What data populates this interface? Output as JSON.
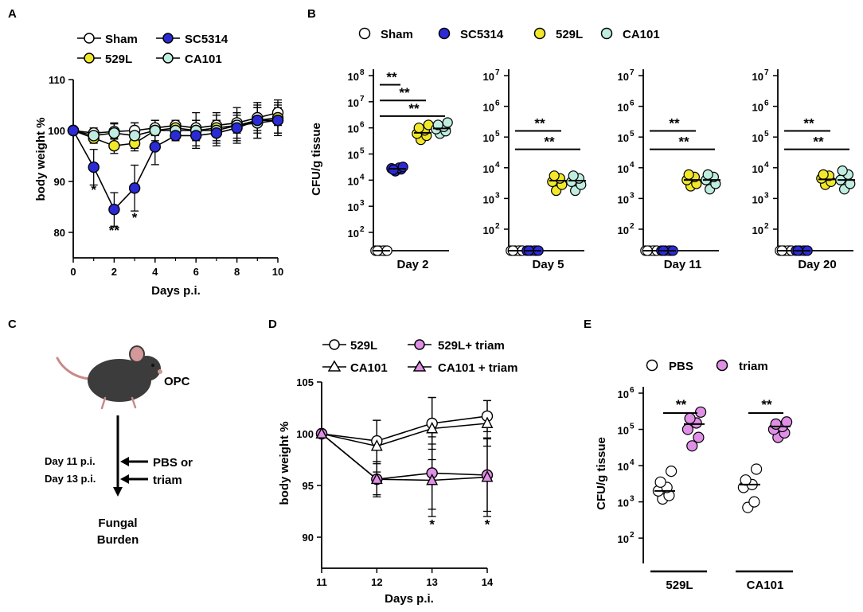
{
  "panels": {
    "A": "A",
    "B": "B",
    "C": "C",
    "D": "D",
    "E": "E"
  },
  "colors": {
    "sham": "#ffffff",
    "sc5314": "#2b2bd6",
    "l529": "#f2e82a",
    "ca101": "#bfeee0",
    "triam": "#e08fe6",
    "stroke": "#000000"
  },
  "chart_data": [
    {
      "id": "A",
      "type": "line",
      "xlabel": "Days p.i.",
      "ylabel": "body weight %",
      "xlim": [
        0,
        10
      ],
      "ylim": [
        75,
        110
      ],
      "x_ticks": [
        "0",
        "2",
        "4",
        "6",
        "8",
        "10"
      ],
      "y_ticks": [
        "80",
        "90",
        "100",
        "110"
      ],
      "x_tick_values": [
        0,
        2,
        4,
        6,
        8,
        10
      ],
      "y_tick_values": [
        80,
        90,
        100,
        110
      ],
      "legend": [
        "Sham",
        "SC5314",
        "529L",
        "CA101"
      ],
      "x": [
        0,
        1,
        2,
        3,
        4,
        5,
        6,
        7,
        8,
        9,
        10
      ],
      "series": [
        {
          "name": "Sham",
          "color_key": "sham",
          "values": [
            100,
            99.5,
            99.8,
            100,
            100.5,
            101,
            100.5,
            101,
            101.5,
            102.5,
            103.5
          ],
          "err": [
            0,
            1,
            1.5,
            1.5,
            1.5,
            1,
            1.5,
            2,
            2,
            2.5,
            2.5
          ]
        },
        {
          "name": "529L",
          "color_key": "l529",
          "values": [
            100,
            98.5,
            97,
            97.5,
            100,
            100.5,
            100,
            100.5,
            101,
            102,
            102.5
          ],
          "err": [
            0,
            1,
            1.5,
            1.5,
            1,
            1,
            3.5,
            3,
            3.5,
            3.5,
            3
          ]
        },
        {
          "name": "CA101",
          "color_key": "ca101",
          "values": [
            100,
            99,
            99.5,
            99,
            100,
            100,
            100,
            100,
            101,
            101.5,
            102
          ],
          "err": [
            0,
            1,
            2,
            2.5,
            2,
            1,
            2,
            2,
            2.5,
            3,
            3
          ]
        },
        {
          "name": "SC5314",
          "color_key": "sc5314",
          "values": [
            100,
            92.8,
            84.5,
            88.7,
            96.8,
            99,
            99,
            99.5,
            100.5,
            102,
            102
          ],
          "err": [
            0,
            3.5,
            3.3,
            4.5,
            3.5,
            1,
            2,
            2.5,
            2.5,
            2.5,
            2.5
          ]
        }
      ],
      "annotations": [
        {
          "text": "*",
          "x": 1,
          "y": 87.5
        },
        {
          "text": "**",
          "x": 2,
          "y": 79.5
        },
        {
          "text": "*",
          "x": 3,
          "y": 82
        }
      ]
    },
    {
      "id": "B",
      "type": "scatter",
      "ylabel": "CFU/g tissue",
      "scale": "log",
      "legend": [
        "Sham",
        "SC5314",
        "529L",
        "CA101"
      ],
      "subplots": [
        {
          "category": "Day 2",
          "ylim_exp": [
            1.3,
            8
          ],
          "top_tick": 8,
          "y_ticks": [
            "10",
            "10",
            "10",
            "10",
            "10",
            "10",
            "10"
          ],
          "y_tick_exps": [
            "2",
            "3",
            "4",
            "5",
            "6",
            "7",
            "8"
          ],
          "groups": [
            {
              "name": "Sham",
              "values": [
                20,
                20,
                20,
                20,
                20,
                20
              ]
            },
            {
              "name": "SC5314",
              "values": [
                22000,
                26000,
                28000,
                30000,
                25000,
                32000
              ]
            },
            {
              "name": "529L",
              "values": [
                350000,
                500000,
                600000,
                800000,
                1000000,
                1300000
              ]
            },
            {
              "name": "CA101",
              "values": [
                600000,
                750000,
                900000,
                1100000,
                1300000,
                1600000
              ]
            }
          ],
          "median": [
            20,
            27000,
            650000,
            950000
          ],
          "brackets": [
            {
              "from": 0,
              "to": 1,
              "exp": 7.65,
              "label": "**"
            },
            {
              "from": 0,
              "to": 2,
              "exp": 7.05,
              "label": "**"
            },
            {
              "from": 0,
              "to": 3,
              "exp": 6.45,
              "label": "**"
            }
          ]
        },
        {
          "category": "Day 5",
          "ylim_exp": [
            1.3,
            7
          ],
          "top_tick": 7,
          "y_ticks": [
            "10",
            "10",
            "10",
            "10",
            "10",
            "10"
          ],
          "y_tick_exps": [
            "2",
            "3",
            "4",
            "5",
            "6",
            "7"
          ],
          "groups": [
            {
              "name": "Sham",
              "values": [
                20,
                20,
                20,
                20,
                20,
                20
              ]
            },
            {
              "name": "SC5314",
              "values": [
                20,
                20,
                20,
                20,
                20,
                20
              ]
            },
            {
              "name": "529L",
              "values": [
                1800,
                2800,
                3500,
                4500,
                5500
              ]
            },
            {
              "name": "CA101",
              "values": [
                1800,
                2800,
                3500,
                4500,
                5500
              ]
            }
          ],
          "median": [
            20,
            20,
            3800,
            3800
          ],
          "brackets": [
            {
              "from": 0,
              "to": 2,
              "exp": 5.2,
              "label": "**"
            },
            {
              "from": 0,
              "to": 3,
              "exp": 4.6,
              "label": "**"
            }
          ]
        },
        {
          "category": "Day 11",
          "ylim_exp": [
            1.3,
            7
          ],
          "top_tick": 7,
          "y_ticks": [
            "10",
            "10",
            "10",
            "10",
            "10",
            "10"
          ],
          "y_tick_exps": [
            "2",
            "3",
            "4",
            "5",
            "6",
            "7"
          ],
          "groups": [
            {
              "name": "Sham",
              "values": [
                20,
                20,
                20,
                20,
                20,
                20
              ]
            },
            {
              "name": "SC5314",
              "values": [
                20,
                20,
                20,
                20,
                20,
                20
              ]
            },
            {
              "name": "529L",
              "values": [
                2500,
                3000,
                4000,
                5000,
                6000
              ]
            },
            {
              "name": "CA101",
              "values": [
                2000,
                3000,
                4000,
                5000,
                6000
              ]
            }
          ],
          "median": [
            20,
            20,
            4000,
            4000
          ],
          "brackets": [
            {
              "from": 0,
              "to": 2,
              "exp": 5.2,
              "label": "**"
            },
            {
              "from": 0,
              "to": 3,
              "exp": 4.6,
              "label": "**"
            }
          ]
        },
        {
          "category": "Day 20",
          "ylim_exp": [
            1.3,
            7
          ],
          "top_tick": 7,
          "y_ticks": [
            "10",
            "10",
            "10",
            "10",
            "10",
            "10"
          ],
          "y_tick_exps": [
            "2",
            "3",
            "4",
            "5",
            "6",
            "7"
          ],
          "groups": [
            {
              "name": "Sham",
              "values": [
                20,
                20,
                20,
                20,
                20,
                20
              ]
            },
            {
              "name": "SC5314",
              "values": [
                20,
                20,
                20,
                20,
                20,
                20
              ]
            },
            {
              "name": "529L",
              "values": [
                2800,
                3500,
                4500,
                5500,
                6000
              ]
            },
            {
              "name": "CA101",
              "values": [
                2000,
                3000,
                4000,
                6000,
                8000
              ]
            }
          ],
          "median": [
            20,
            20,
            4200,
            4000
          ],
          "brackets": [
            {
              "from": 0,
              "to": 2,
              "exp": 5.2,
              "label": "**"
            },
            {
              "from": 0,
              "to": 3,
              "exp": 4.6,
              "label": "**"
            }
          ]
        }
      ]
    },
    {
      "id": "D",
      "type": "line",
      "xlabel": "Days p.i.",
      "ylabel": "body weight %",
      "xlim": [
        11,
        14
      ],
      "ylim": [
        87,
        105
      ],
      "x_ticks": [
        "11",
        "12",
        "13",
        "14"
      ],
      "y_ticks": [
        "90",
        "95",
        "100",
        "105"
      ],
      "x_tick_values": [
        11,
        12,
        13,
        14
      ],
      "y_tick_values": [
        90,
        95,
        100,
        105
      ],
      "legend": [
        "529L",
        "529L+ triam",
        "CA101",
        "CA101 + triam"
      ],
      "x": [
        11,
        12,
        13,
        14
      ],
      "series": [
        {
          "name": "529L",
          "marker": "circle",
          "color_key": "sham",
          "values": [
            100,
            99.3,
            101,
            101.7
          ],
          "err": [
            0,
            2,
            2.5,
            1.5
          ]
        },
        {
          "name": "CA101",
          "marker": "triangle",
          "color_key": "sham",
          "values": [
            100,
            98.8,
            100.5,
            101
          ],
          "err": [
            0,
            2.5,
            3,
            2.2
          ]
        },
        {
          "name": "529L+ triam",
          "marker": "circle",
          "color_key": "triam",
          "values": [
            100,
            95.6,
            96.2,
            96
          ],
          "err": [
            0,
            1.5,
            3.5,
            3.5
          ]
        },
        {
          "name": "CA101 + triam",
          "marker": "triangle",
          "color_key": "triam",
          "values": [
            100,
            95.6,
            95.5,
            95.8
          ],
          "err": [
            0,
            1.7,
            3.5,
            3.8
          ]
        }
      ],
      "annotations": [
        {
          "text": "*",
          "x": 13,
          "y": 90.8
        },
        {
          "text": "*",
          "x": 14,
          "y": 90.8
        }
      ]
    },
    {
      "id": "E",
      "type": "scatter",
      "ylabel": "CFU/g tissue",
      "scale": "log",
      "ylim_exp": [
        1.3,
        6
      ],
      "y_ticks": [
        "10",
        "10",
        "10",
        "10",
        "10"
      ],
      "y_tick_exps": [
        "2",
        "3",
        "4",
        "5",
        "6"
      ],
      "legend": [
        "PBS",
        "triam"
      ],
      "categories": [
        "529L",
        "CA101"
      ],
      "groups": [
        {
          "name": "PBS",
          "category": "529L",
          "values": [
            1200,
            1500,
            2000,
            2500,
            3500,
            7000
          ]
        },
        {
          "name": "triam",
          "category": "529L",
          "values": [
            35000,
            60000,
            100000,
            150000,
            200000,
            300000
          ]
        },
        {
          "name": "PBS",
          "category": "CA101",
          "values": [
            700,
            1000,
            2500,
            3000,
            4000,
            8000
          ]
        },
        {
          "name": "triam",
          "category": "CA101",
          "values": [
            60000,
            80000,
            100000,
            120000,
            140000,
            160000
          ]
        }
      ],
      "median": [
        2000,
        140000,
        3000,
        120000
      ],
      "brackets": [
        {
          "label": "**",
          "exp": 5.45
        },
        {
          "label": "**",
          "exp": 5.45
        }
      ]
    }
  ],
  "schematic": {
    "model": "OPC",
    "day11": "Day 11 p.i.",
    "day13": "Day 13 p.i.",
    "treatment1": "PBS or",
    "treatment2": "triam",
    "outcome1": "Fungal",
    "outcome2": "Burden"
  }
}
